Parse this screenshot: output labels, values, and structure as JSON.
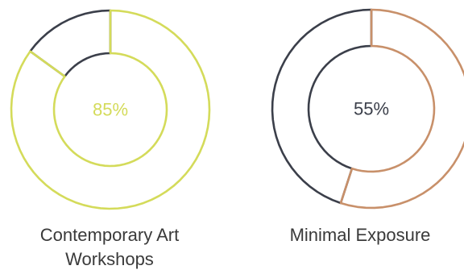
{
  "chart_data": {
    "type": "donut",
    "items": [
      {
        "label": "Contemporary Art Workshops",
        "label_lines": [
          "Contemporary Art",
          "Workshops"
        ],
        "value": 85,
        "value_label": "85%",
        "color": "#d4db5a",
        "remainder_color": "#3b3f4a"
      },
      {
        "label": "Minimal Exposure",
        "label_lines": [
          "Minimal Exposure"
        ],
        "value": 55,
        "value_label": "55%",
        "color": "#c8906a",
        "remainder_color": "#3b3f4a"
      }
    ]
  }
}
